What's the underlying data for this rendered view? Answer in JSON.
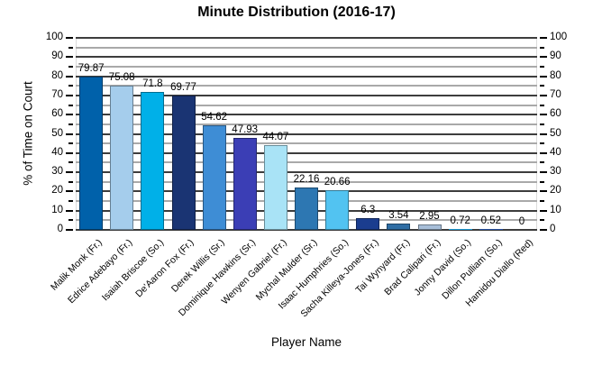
{
  "chart_data": {
    "type": "bar",
    "title": "Minute Distribution (2016-17)",
    "xlabel": "Player Name",
    "ylabel": "% of Time on Court",
    "ylim": [
      0,
      100
    ],
    "y_major_step": 10,
    "y_minor_step": 5,
    "grid": "horizontal major and minor gridlines, tick marks and tick labels on both left and right sides, value labels above bars, x labels rotated 45 degrees",
    "legend": "none",
    "categories": [
      "Malik Monk (Fr.)",
      "Edrice Adebayo (Fr.)",
      "Isaiah Briscoe (So.)",
      "De'Aaron Fox (Fr.)",
      "Derek Willis (Sr.)",
      "Dominique Hawkins (Sr.)",
      "Wenyen Gabriel (Fr.)",
      "Mychal Mulder (Sr.)",
      "Isaac Humphries (So.)",
      "Sacha Killeya-Jones (Fr.)",
      "Tai Wynyard (Fr.)",
      "Brad Calipari (Fr.)",
      "Jonny David (So.)",
      "Dillon Pulliam (So.)",
      "Hamidou Diallo (Red)"
    ],
    "values": [
      79.87,
      75.08,
      71.8,
      69.77,
      54.62,
      47.93,
      44.07,
      22.16,
      20.66,
      6.3,
      3.54,
      2.95,
      0.72,
      0.52,
      0
    ],
    "bar_colors": [
      "#0061aa",
      "#a5cdec",
      "#00b0e8",
      "#1a3473",
      "#3e8dd5",
      "#3b3eb5",
      "#a9e3f6",
      "#2d77b2",
      "#52c3f1",
      "#1b3d8f",
      "#2e6da4",
      "#a7bed8",
      "#1f9ad2",
      "#27519f",
      "#2e6da4"
    ],
    "colors": {
      "major_grid": "#3d3d3d",
      "minor_grid": "#a9a9a9",
      "tick": "#000000",
      "text": "#000000",
      "plot_edge": "#dcdcdc",
      "bar_border": "rgba(0,0,0,0.38)"
    }
  }
}
